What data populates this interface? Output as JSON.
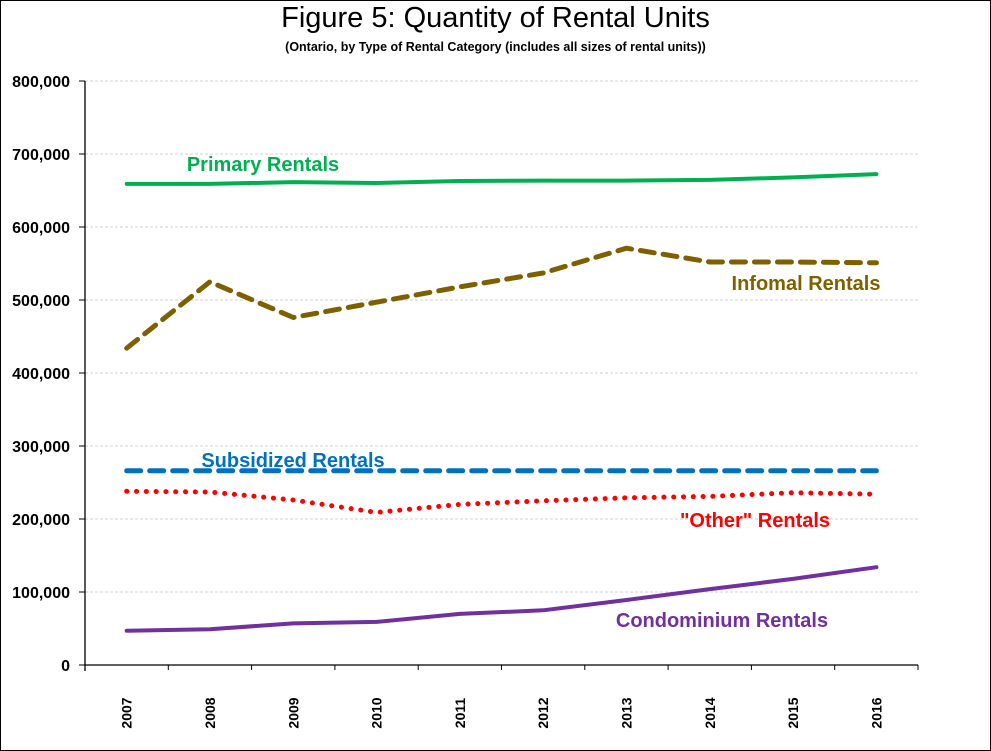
{
  "chart_data": {
    "type": "line",
    "title": "Figure 5: Quantity of Rental Units",
    "subtitle": "(Ontario, by Type of Rental Category (includes all sizes of rental units))",
    "xlabel": "",
    "ylabel": "",
    "categories": [
      "2007",
      "2008",
      "2009",
      "2010",
      "2011",
      "2012",
      "2013",
      "2014",
      "2015",
      "2016"
    ],
    "ylim": [
      0,
      800000
    ],
    "yticks": [
      0,
      100000,
      200000,
      300000,
      400000,
      500000,
      600000,
      700000,
      800000
    ],
    "ytick_labels": [
      "0",
      "100,000",
      "200,000",
      "300,000",
      "400,000",
      "500,000",
      "600,000",
      "700,000",
      "800,000"
    ],
    "grid": "horizontal-dashed",
    "legend": "inline-labels",
    "series": [
      {
        "name": "Primary Rentals",
        "label": "Primary Rentals",
        "color": "#00B050",
        "style": "solid",
        "values": [
          659000,
          659000,
          661500,
          660300,
          663000,
          663500,
          663500,
          664500,
          668000,
          672500
        ]
      },
      {
        "name": "Infomal Rentals",
        "label": "Infomal Rentals",
        "color": "#7F6000",
        "style": "dashed",
        "values": [
          434000,
          525000,
          476000,
          497000,
          518000,
          537000,
          571000,
          552000,
          552000,
          551000
        ]
      },
      {
        "name": "Subsidized Rentals",
        "label": "Subsidized Rentals",
        "color": "#0070C0",
        "style": "dashed",
        "values": [
          266000,
          266000,
          266000,
          266000,
          266000,
          266000,
          266000,
          266000,
          266000,
          266000
        ]
      },
      {
        "name": "\"Other\" Rentals",
        "label": "\"Other\" Rentals",
        "color": "#FF0000",
        "style": "dotted",
        "values": [
          238000,
          237000,
          226000,
          209000,
          220000,
          225000,
          229000,
          231000,
          236000,
          234000
        ]
      },
      {
        "name": "Condominium Rentals",
        "label": "Condominium Rentals",
        "color": "#7030A0",
        "style": "solid",
        "values": [
          47000,
          49000,
          57000,
          59000,
          70000,
          75000,
          89000,
          104000,
          118000,
          134000
        ]
      }
    ]
  }
}
